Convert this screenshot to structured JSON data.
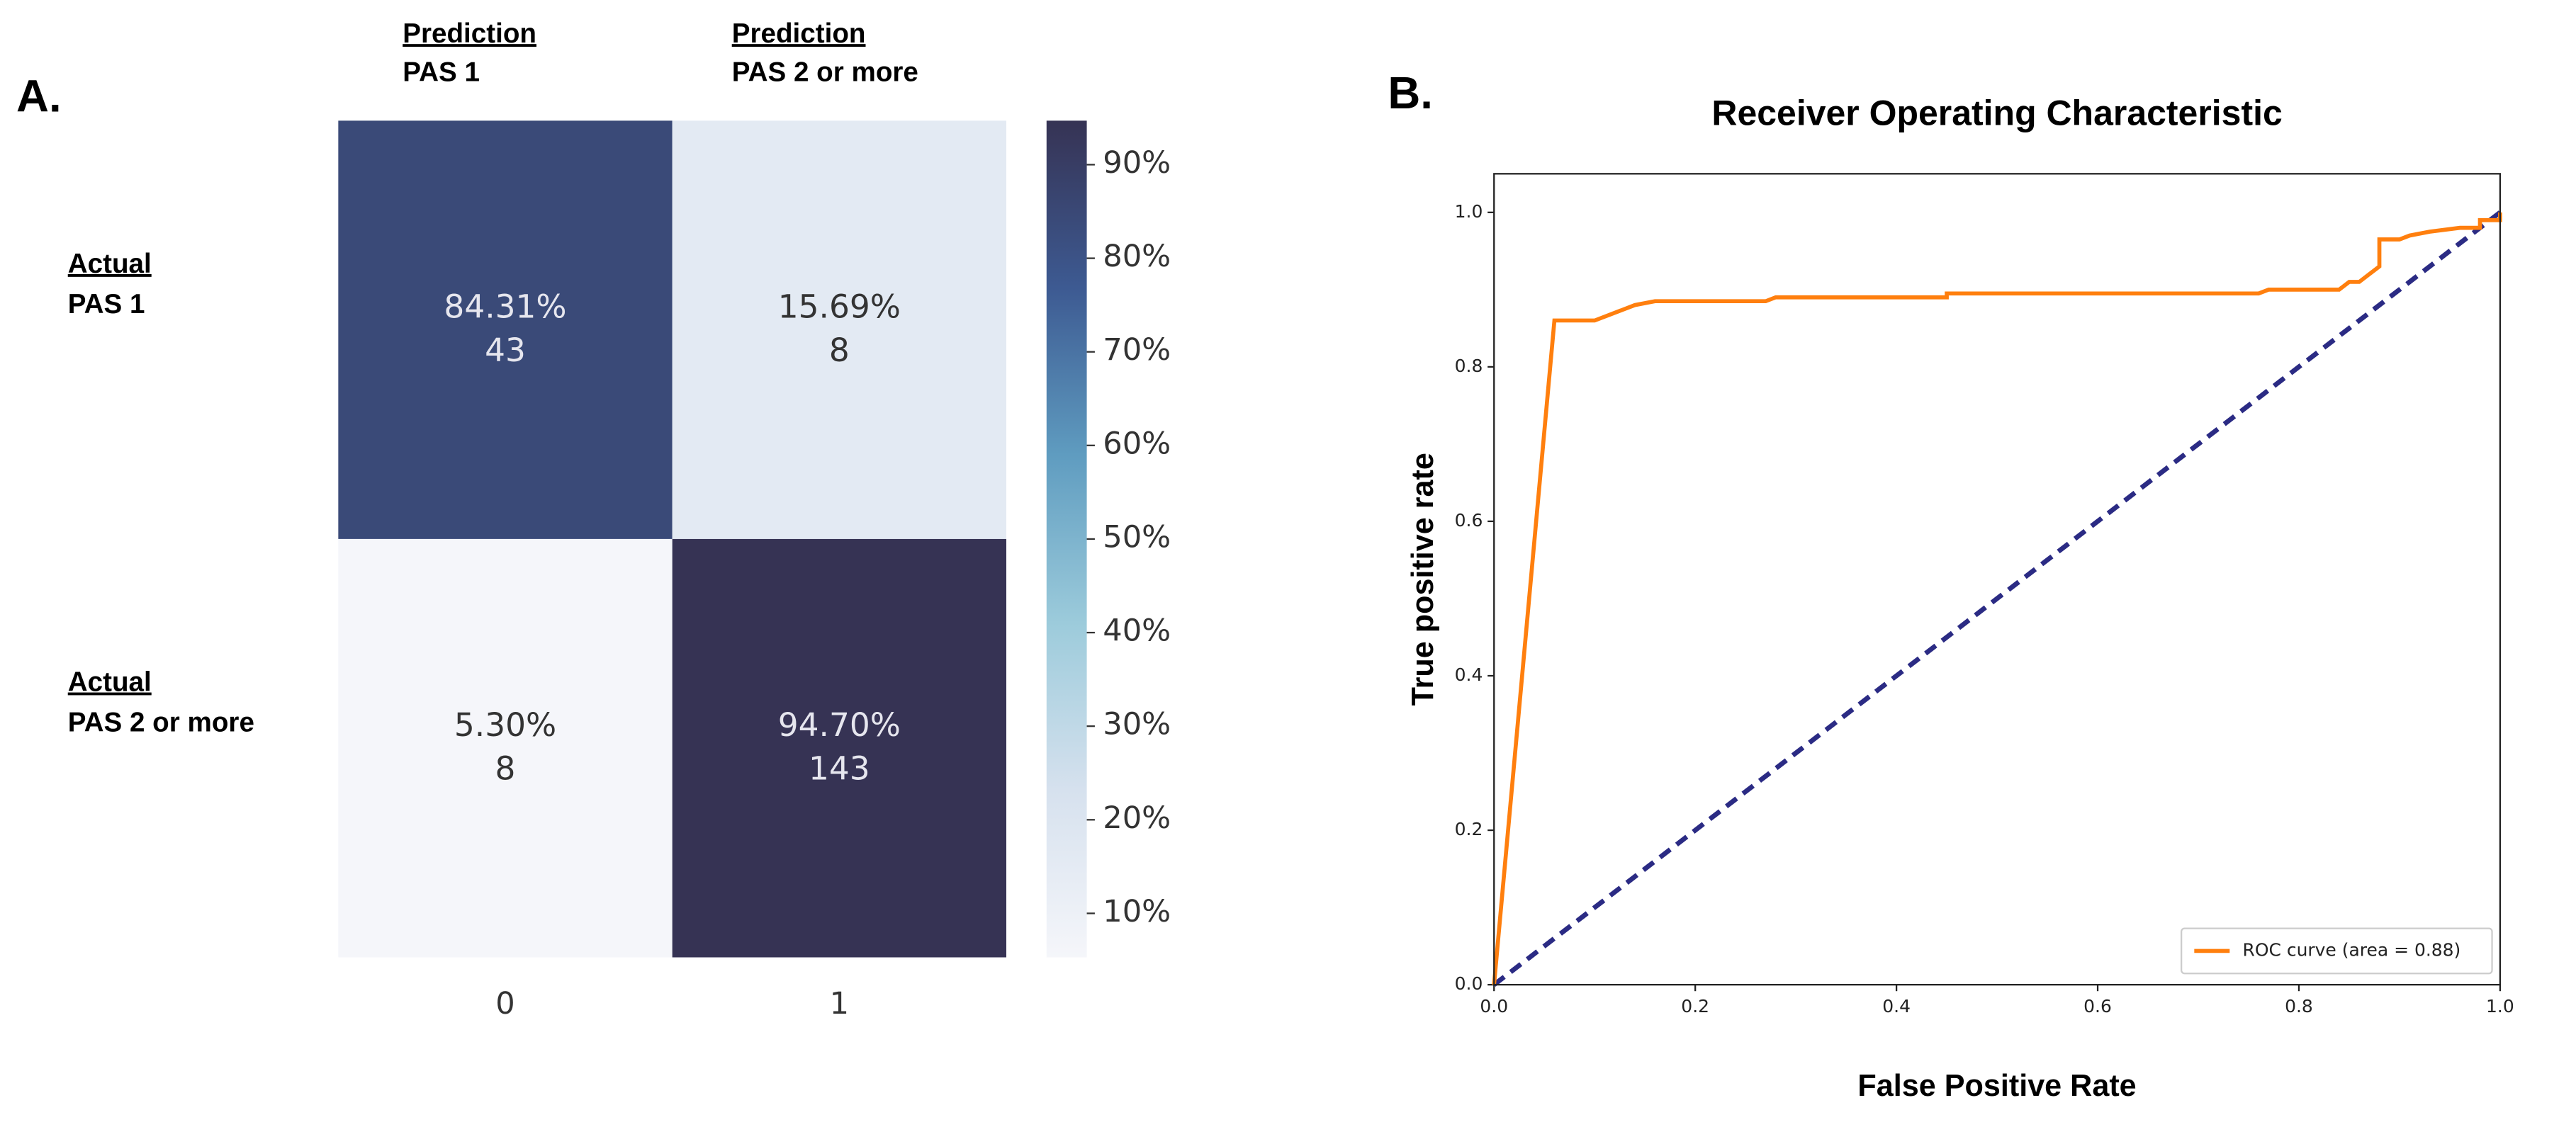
{
  "chart_data": [
    {
      "type": "heatmap",
      "panel": "A.",
      "column_headers": [
        {
          "title": "Prediction",
          "label": "PAS 1"
        },
        {
          "title": "Prediction",
          "label": "PAS 2 or more"
        }
      ],
      "row_headers": [
        {
          "title": "Actual",
          "label": "PAS 1"
        },
        {
          "title": "Actual",
          "label": "PAS 2 or more"
        }
      ],
      "categories": [
        "0",
        "1"
      ],
      "values": [
        [
          84.31,
          15.69
        ],
        [
          5.3,
          94.7
        ]
      ],
      "value_labels": [
        [
          "84.31%",
          "15.69%"
        ],
        [
          "5.30%",
          "94.70%"
        ]
      ],
      "counts": [
        [
          43,
          8
        ],
        [
          8,
          143
        ]
      ],
      "clim": [
        5.3,
        94.7
      ],
      "colorscale": [
        "#f5f6fa",
        "#d6e1ee",
        "#9ccbdb",
        "#5f9cc0",
        "#3d5a92",
        "#363354"
      ],
      "colorbar_ticks": [
        {
          "value": 10,
          "label": "10%"
        },
        {
          "value": 20,
          "label": "20%"
        },
        {
          "value": 30,
          "label": "30%"
        },
        {
          "value": 40,
          "label": "40%"
        },
        {
          "value": 50,
          "label": "50%"
        },
        {
          "value": 60,
          "label": "60%"
        },
        {
          "value": 70,
          "label": "70%"
        },
        {
          "value": 80,
          "label": "80%"
        },
        {
          "value": 90,
          "label": "90%"
        }
      ]
    },
    {
      "type": "line",
      "panel": "B.",
      "title": "Receiver Operating Characteristic",
      "x_label": "False Positive Rate",
      "y_label": "True positive rate",
      "xlim": [
        0,
        1
      ],
      "ylim": [
        0,
        1.05
      ],
      "xticks": [
        {
          "value": 0,
          "label": "0.0"
        },
        0.2,
        0.4,
        0.6,
        0.8,
        {
          "value": 1,
          "label": "1.0"
        }
      ],
      "yticks": [
        {
          "value": 0,
          "label": "0.0"
        },
        0.2,
        0.4,
        0.6,
        0.8,
        {
          "value": 1,
          "label": "1.0"
        }
      ],
      "legend": "lower right",
      "series": [
        {
          "name": "ROC curve (area = 0.88)",
          "color": "#ff7f0e",
          "linestyle": "solid",
          "x": [
            0,
            0.06,
            0.1,
            0.13,
            0.14,
            0.16,
            0.27,
            0.28,
            0.45,
            0.45,
            0.76,
            0.77,
            0.84,
            0.85,
            0.86,
            0.87,
            0.88,
            0.88,
            0.9,
            0.91,
            0.93,
            0.96,
            0.98,
            0.98,
            1,
            1
          ],
          "values": [
            0,
            0.86,
            0.86,
            0.875,
            0.88,
            0.885,
            0.885,
            0.89,
            0.89,
            0.895,
            0.895,
            0.9,
            0.9,
            0.91,
            0.91,
            0.92,
            0.93,
            0.965,
            0.965,
            0.97,
            0.975,
            0.98,
            0.98,
            0.99,
            0.99,
            1
          ]
        },
        {
          "color": "#2b2b84",
          "linestyle": "dashed",
          "x": [
            0,
            1
          ],
          "values": [
            0,
            1
          ]
        }
      ]
    }
  ]
}
